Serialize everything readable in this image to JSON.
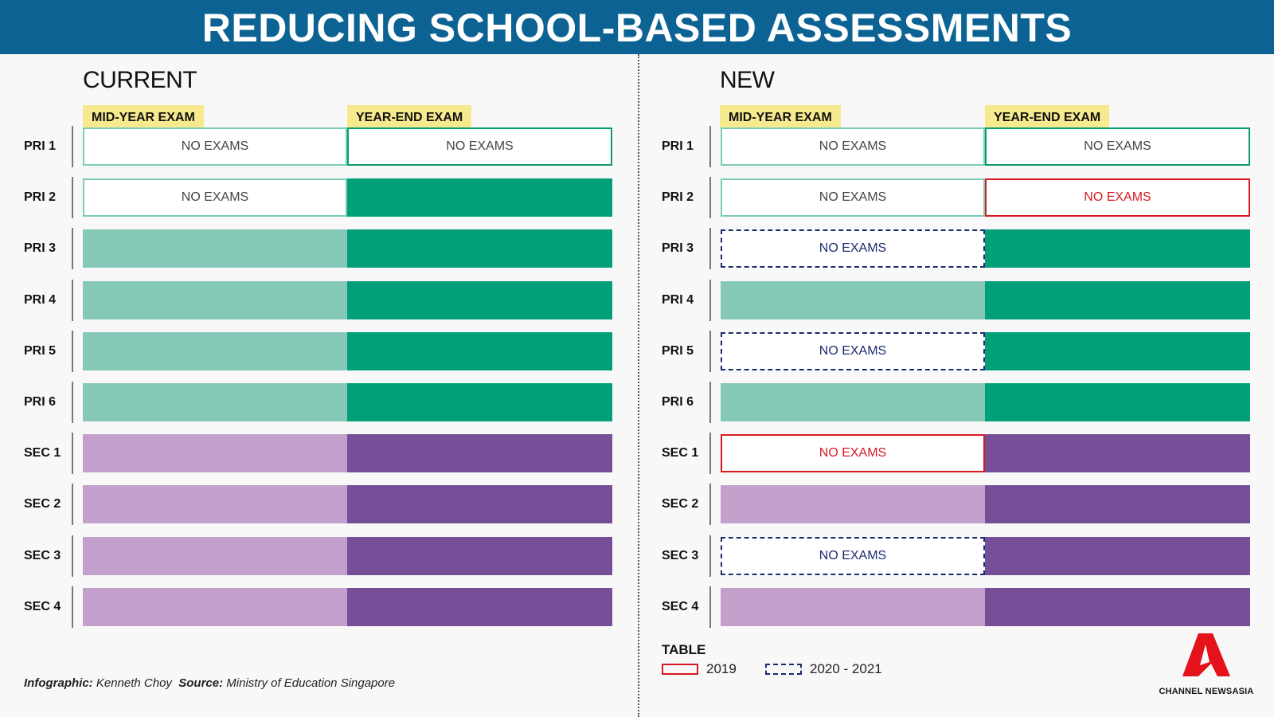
{
  "title": "REDUCING SCHOOL-BASED ASSESSMENTS",
  "columns": {
    "mid": "MID-YEAR EXAM",
    "end": "YEAR-END EXAM"
  },
  "no_exams": "NO EXAMS",
  "current": {
    "title": "CURRENT",
    "rows": [
      {
        "label": "PRI 1",
        "mid": "empty-light",
        "end": "empty-dark"
      },
      {
        "label": "PRI 2",
        "mid": "empty-light",
        "end": "dark-green"
      },
      {
        "label": "PRI 3",
        "mid": "light-green",
        "end": "dark-green"
      },
      {
        "label": "PRI 4",
        "mid": "light-green",
        "end": "dark-green"
      },
      {
        "label": "PRI 5",
        "mid": "light-green",
        "end": "dark-green"
      },
      {
        "label": "PRI 6",
        "mid": "light-green",
        "end": "dark-green"
      },
      {
        "label": "SEC 1",
        "mid": "light-purple",
        "end": "dark-purple"
      },
      {
        "label": "SEC 2",
        "mid": "light-purple",
        "end": "dark-purple"
      },
      {
        "label": "SEC 3",
        "mid": "light-purple",
        "end": "dark-purple"
      },
      {
        "label": "SEC 4",
        "mid": "light-purple",
        "end": "dark-purple"
      }
    ]
  },
  "new": {
    "title": "NEW",
    "rows": [
      {
        "label": "PRI 1",
        "mid": "empty-light",
        "end": "empty-dark"
      },
      {
        "label": "PRI 2",
        "mid": "empty-light",
        "end": "red-outline"
      },
      {
        "label": "PRI 3",
        "mid": "dashed-blue",
        "end": "dark-green"
      },
      {
        "label": "PRI 4",
        "mid": "light-green",
        "end": "dark-green"
      },
      {
        "label": "PRI 5",
        "mid": "dashed-blue",
        "end": "dark-green"
      },
      {
        "label": "PRI 6",
        "mid": "light-green",
        "end": "dark-green"
      },
      {
        "label": "SEC 1",
        "mid": "red-outline",
        "end": "dark-purple"
      },
      {
        "label": "SEC 2",
        "mid": "light-purple",
        "end": "dark-purple"
      },
      {
        "label": "SEC 3",
        "mid": "dashed-blue",
        "end": "dark-purple"
      },
      {
        "label": "SEC 4",
        "mid": "light-purple",
        "end": "dark-purple"
      }
    ]
  },
  "legend": {
    "title": "TABLE",
    "items": [
      {
        "label": "2019",
        "style": "red-outline"
      },
      {
        "label": "2020 - 2021",
        "style": "dashed-blue"
      }
    ]
  },
  "credit": {
    "infographic_label": "Infographic:",
    "infographic_name": "Kenneth Choy",
    "source_label": "Source:",
    "source_name": "Ministry of Education Singapore"
  },
  "logo": {
    "text": "CHANNEL NEWSASIA"
  },
  "colors": {
    "header": "#0b6293",
    "accent_red": "#d71920",
    "dashed_blue": "#1c2a6e",
    "dark_green": "#02a07a",
    "light_green": "#86c8b8",
    "dark_purple": "#764f98",
    "light_purple": "#c3a0cc"
  }
}
